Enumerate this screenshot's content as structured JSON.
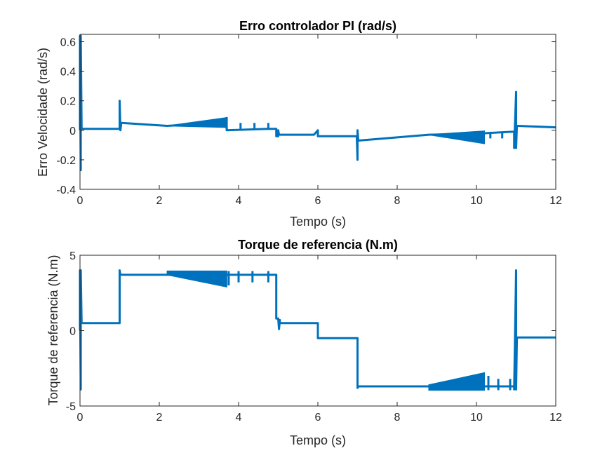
{
  "chart_data": [
    {
      "type": "line",
      "title": "Erro controlador PI (rad/s)",
      "xlabel": "Tempo (s)",
      "ylabel": "Erro Velocidade (rad/s)",
      "xlim": [
        0,
        12
      ],
      "ylim": [
        -0.4,
        0.65
      ],
      "xticks": [
        0,
        2,
        4,
        6,
        8,
        10,
        12
      ],
      "yticks": [
        -0.4,
        -0.2,
        0,
        0.2,
        0.4,
        0.6
      ],
      "xtick_labels": [
        "0",
        "2",
        "4",
        "6",
        "8",
        "10",
        "12"
      ],
      "ytick_labels": [
        "-0.4",
        "-0.2",
        "0",
        "0.2",
        "0.4",
        "0.6"
      ],
      "grid": false,
      "line_color": "#0072BD",
      "series": [
        {
          "x": [
            0,
            0,
            0.02,
            0.02,
            0.04,
            1.0,
            1.0,
            1.02,
            1.04,
            2.2,
            3.4,
            3.7,
            3.7,
            4.8,
            4.95,
            4.95,
            5.0,
            5.0,
            5.02,
            5.9,
            6.0,
            6.0,
            6.02,
            6.98,
            7.0,
            7.0,
            7.02,
            7.02,
            8.8,
            10.2,
            10.9,
            10.95,
            10.95,
            11.0,
            11.0,
            11.02,
            11.04,
            12.0
          ],
          "y": [
            0,
            0.64,
            -0.27,
            0.64,
            0.01,
            0.01,
            0.2,
            -0.0,
            0.05,
            0.03,
            0.05,
            0.02,
            0.0,
            0.01,
            0.01,
            -0.04,
            -0.04,
            0.0,
            -0.03,
            -0.03,
            0.0,
            -0.04,
            -0.04,
            -0.04,
            -0.2,
            0.0,
            -0.07,
            -0.07,
            -0.03,
            -0.02,
            -0.01,
            -0.01,
            -0.12,
            0.26,
            -0.12,
            0.03,
            0.03,
            0.02
          ]
        }
      ],
      "oscillation_bands": [
        {
          "x": [
            2.2,
            3.7
          ],
          "y_low": [
            0.03,
            0.02
          ],
          "y_high": [
            0.03,
            0.085
          ]
        },
        {
          "x": [
            8.8,
            10.2
          ],
          "y_low": [
            -0.03,
            -0.09
          ],
          "y_high": [
            -0.03,
            -0.005
          ]
        }
      ],
      "spikes": [
        {
          "x": 3.7,
          "y0": 0.0,
          "y1": 0.09
        },
        {
          "x": 4.05,
          "y0": 0.01,
          "y1": 0.05
        },
        {
          "x": 4.4,
          "y0": 0.01,
          "y1": 0.05
        },
        {
          "x": 4.75,
          "y0": 0.01,
          "y1": 0.05
        },
        {
          "x": 10.35,
          "y0": -0.01,
          "y1": -0.055
        },
        {
          "x": 10.65,
          "y0": -0.01,
          "y1": -0.055
        }
      ]
    },
    {
      "type": "line",
      "title": "Torque de referencia (N.m)",
      "xlabel": "Tempo (s)",
      "ylabel": "Torque de referencia (N.m)",
      "xlim": [
        0,
        12
      ],
      "ylim": [
        -5,
        5
      ],
      "xticks": [
        0,
        2,
        4,
        6,
        8,
        10,
        12
      ],
      "yticks": [
        -5,
        0,
        5
      ],
      "xtick_labels": [
        "0",
        "2",
        "4",
        "6",
        "8",
        "10",
        "12"
      ],
      "ytick_labels": [
        "-5",
        "0",
        "5"
      ],
      "grid": false,
      "line_color": "#0072BD",
      "series": [
        {
          "x": [
            0,
            0,
            0.02,
            0.02,
            0.04,
            1.0,
            1.0,
            1.02,
            1.04,
            2.2,
            3.7,
            4.9,
            4.95,
            4.95,
            5.0,
            5.02,
            5.04,
            5.04,
            5.06,
            6.0,
            6.0,
            6.02,
            7.0,
            7.0,
            7.02,
            8.8,
            10.9,
            10.95,
            10.95,
            11.0,
            11.0,
            11.02,
            11.04,
            12.0
          ],
          "y": [
            0,
            4.0,
            -3.9,
            4.0,
            0.5,
            0.5,
            4.0,
            3.7,
            3.7,
            3.7,
            3.7,
            3.7,
            3.7,
            0.8,
            0.8,
            0.1,
            0.7,
            0.5,
            0.5,
            0.5,
            -0.5,
            -0.5,
            -0.5,
            -3.8,
            -3.7,
            -3.7,
            -3.7,
            -3.7,
            -3.9,
            4.0,
            -3.9,
            -0.45,
            -0.45,
            -0.45
          ]
        }
      ],
      "oscillation_bands": [
        {
          "x": [
            2.2,
            3.7
          ],
          "y_low": [
            3.7,
            2.9
          ],
          "y_high": [
            3.95,
            3.95
          ]
        },
        {
          "x": [
            8.8,
            10.2
          ],
          "y_low": [
            -3.95,
            -3.95
          ],
          "y_high": [
            -3.6,
            -2.8
          ]
        }
      ],
      "spikes": [
        {
          "x": 3.75,
          "y0": 3.0,
          "y1": 3.95
        },
        {
          "x": 4.0,
          "y0": 3.2,
          "y1": 3.95
        },
        {
          "x": 4.35,
          "y0": 3.2,
          "y1": 3.95
        },
        {
          "x": 4.75,
          "y0": 3.2,
          "y1": 3.95
        },
        {
          "x": 10.3,
          "y0": -3.95,
          "y1": -3.0
        },
        {
          "x": 10.55,
          "y0": -3.95,
          "y1": -3.2
        },
        {
          "x": 10.85,
          "y0": -3.95,
          "y1": -3.2
        }
      ]
    }
  ]
}
